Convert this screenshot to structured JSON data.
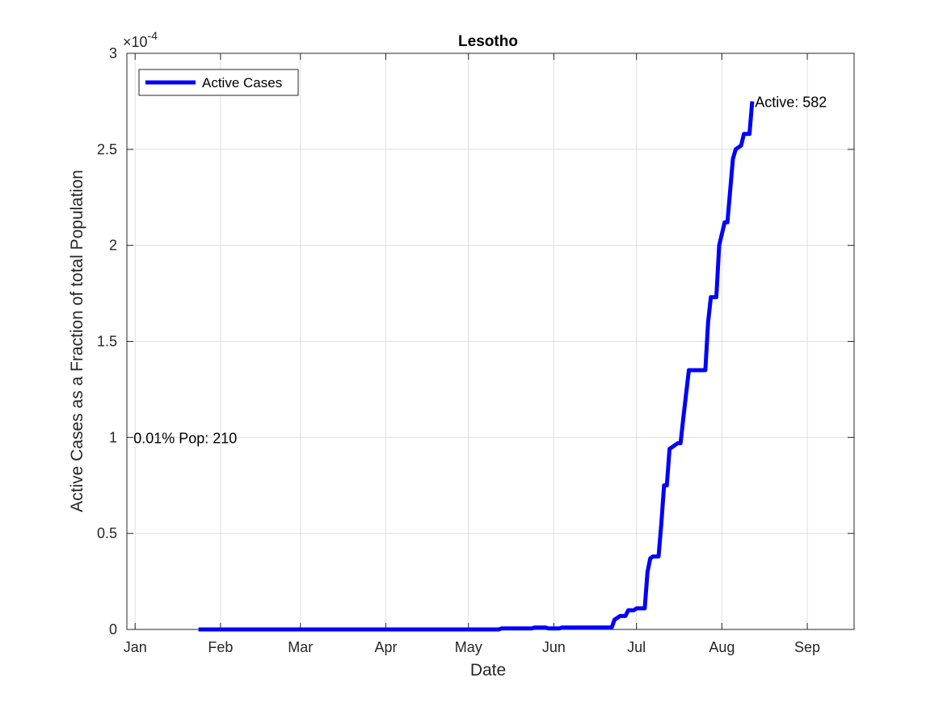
{
  "chart_data": {
    "type": "line",
    "title": "Lesotho",
    "xlabel": "Date",
    "ylabel": "Active Cases as a Fraction of total Population",
    "y_exponent_label": "×10",
    "y_exponent_power": "-4",
    "x_tick_labels": [
      "Jan",
      "Feb",
      "Mar",
      "Apr",
      "May",
      "Jun",
      "Jul",
      "Aug",
      "Sep"
    ],
    "x_ticks": [
      "2020-01-01",
      "2020-02-01",
      "2020-03-01",
      "2020-04-01",
      "2020-05-01",
      "2020-06-01",
      "2020-07-01",
      "2020-08-01",
      "2020-09-01"
    ],
    "y_ticks": [
      0,
      0.5,
      1,
      1.5,
      2,
      2.5,
      3
    ],
    "y_tick_labels": [
      "0",
      "0.5",
      "1",
      "1.5",
      "2",
      "2.5",
      "3"
    ],
    "xlim": [
      "2019-12-29",
      "2020-09-18"
    ],
    "ylim": [
      0,
      3
    ],
    "y_unit_multiplier": "1e-4",
    "grid": true,
    "legend_position": "top-left",
    "series": [
      {
        "name": "Active Cases",
        "color": "#0000ff",
        "x": [
          "2020-01-24",
          "2020-05-12",
          "2020-05-13",
          "2020-05-24",
          "2020-05-25",
          "2020-05-29",
          "2020-05-30",
          "2020-06-03",
          "2020-06-04",
          "2020-06-22",
          "2020-06-23",
          "2020-06-25",
          "2020-06-27",
          "2020-06-28",
          "2020-06-30",
          "2020-07-01",
          "2020-07-04",
          "2020-07-05",
          "2020-07-06",
          "2020-07-07",
          "2020-07-09",
          "2020-07-10",
          "2020-07-11",
          "2020-07-12",
          "2020-07-13",
          "2020-07-16",
          "2020-07-17",
          "2020-07-18",
          "2020-07-20",
          "2020-07-22",
          "2020-07-23",
          "2020-07-26",
          "2020-07-27",
          "2020-07-28",
          "2020-07-30",
          "2020-07-31",
          "2020-08-02",
          "2020-08-03",
          "2020-08-05",
          "2020-08-06",
          "2020-08-08",
          "2020-08-09",
          "2020-08-11",
          "2020-08-12"
        ],
        "y": [
          0,
          0,
          0.005,
          0.005,
          0.01,
          0.01,
          0.005,
          0.005,
          0.01,
          0.01,
          0.05,
          0.07,
          0.07,
          0.1,
          0.1,
          0.11,
          0.11,
          0.3,
          0.37,
          0.38,
          0.38,
          0.55,
          0.75,
          0.75,
          0.94,
          0.97,
          0.97,
          1.1,
          1.35,
          1.35,
          1.35,
          1.35,
          1.6,
          1.73,
          1.73,
          2.0,
          2.12,
          2.12,
          2.45,
          2.5,
          2.52,
          2.58,
          2.58,
          2.75
        ]
      }
    ],
    "annotations": [
      {
        "text": "Active: 582",
        "x": "2020-08-13",
        "y": 2.75
      },
      {
        "text": "0.01% Pop: 210",
        "x": "2020-01-01",
        "y": 1.0
      }
    ]
  }
}
